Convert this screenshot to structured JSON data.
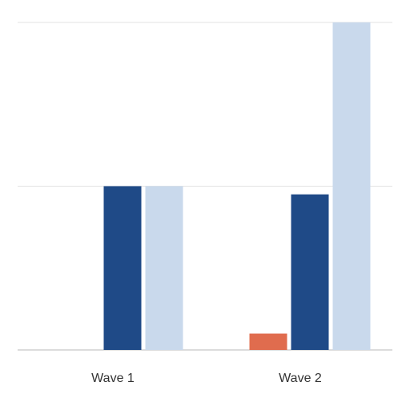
{
  "chart_data": {
    "type": "bar",
    "categories": [
      "Wave 1",
      "Wave 2"
    ],
    "series": [
      {
        "color": "#e06c4e",
        "values": [
          0,
          0.1
        ]
      },
      {
        "color": "#1f4a87",
        "values": [
          1.0,
          0.95
        ]
      },
      {
        "color": "#c9d9ec",
        "values": [
          1.0,
          2.0
        ]
      }
    ],
    "ylim": [
      0,
      2
    ],
    "grid": true,
    "gridline_values": [
      0,
      1,
      2
    ],
    "title": "",
    "xlabel": "",
    "ylabel": ""
  }
}
